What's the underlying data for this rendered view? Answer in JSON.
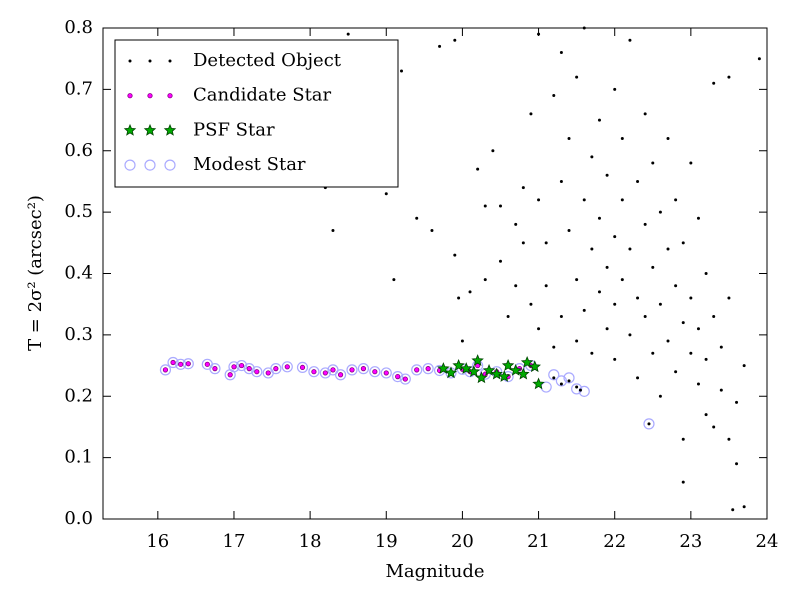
{
  "chart_data": {
    "type": "scatter",
    "xlabel": "Magnitude",
    "ylabel": "T = 2σ² (arcsec²)",
    "xlim": [
      15.28,
      24
    ],
    "ylim": [
      0,
      0.8
    ],
    "xticks": [
      16,
      17,
      18,
      19,
      20,
      21,
      22,
      23,
      24
    ],
    "yticks": [
      {
        "value": 0,
        "label": "0.0"
      },
      0.1,
      0.2,
      0.3,
      0.4,
      0.5,
      0.6,
      0.7,
      0.8
    ],
    "legend": "upper left",
    "series": [
      {
        "name": "Detected Object",
        "color": "#000000",
        "marker": "dot",
        "x": [
          21.2,
          21.3,
          21.4,
          21.5,
          21.55,
          22.45,
          18.2,
          18.3,
          18.5,
          18.9,
          19.0,
          19.1,
          19.2,
          19.4,
          19.6,
          19.7,
          19.9,
          19.9,
          19.95,
          20.0,
          20.1,
          20.2,
          20.3,
          20.3,
          20.4,
          20.5,
          20.5,
          20.6,
          20.7,
          20.7,
          20.8,
          20.8,
          20.9,
          20.9,
          21.0,
          21.0,
          21.0,
          21.1,
          21.1,
          21.2,
          21.2,
          21.3,
          21.3,
          21.3,
          21.4,
          21.4,
          21.5,
          21.5,
          21.5,
          21.6,
          21.6,
          21.6,
          21.7,
          21.7,
          21.7,
          21.8,
          21.8,
          21.8,
          21.9,
          21.9,
          21.9,
          22.0,
          22.0,
          22.0,
          22.0,
          22.1,
          22.1,
          22.1,
          22.2,
          22.2,
          22.2,
          22.3,
          22.3,
          22.3,
          22.4,
          22.4,
          22.4,
          22.5,
          22.5,
          22.5,
          22.6,
          22.6,
          22.6,
          22.7,
          22.7,
          22.7,
          22.8,
          22.8,
          22.8,
          22.9,
          22.9,
          22.9,
          23.0,
          23.0,
          23.0,
          23.1,
          23.1,
          23.1,
          23.2,
          23.2,
          23.2,
          23.3,
          23.3,
          23.3,
          23.4,
          23.4,
          23.5,
          23.5,
          23.6,
          23.6,
          23.7,
          23.7,
          23.5,
          23.9,
          22.9,
          23.55
        ],
        "values": [
          0.23,
          0.22,
          0.225,
          0.215,
          0.21,
          0.155,
          0.54,
          0.47,
          0.79,
          0.68,
          0.53,
          0.39,
          0.73,
          0.49,
          0.47,
          0.77,
          0.43,
          0.78,
          0.36,
          0.29,
          0.37,
          0.57,
          0.39,
          0.51,
          0.6,
          0.51,
          0.42,
          0.33,
          0.48,
          0.38,
          0.54,
          0.45,
          0.66,
          0.35,
          0.52,
          0.79,
          0.31,
          0.45,
          0.38,
          0.69,
          0.28,
          0.55,
          0.76,
          0.33,
          0.47,
          0.62,
          0.39,
          0.29,
          0.72,
          0.52,
          0.34,
          0.8,
          0.44,
          0.59,
          0.27,
          0.37,
          0.65,
          0.49,
          0.31,
          0.41,
          0.56,
          0.7,
          0.35,
          0.46,
          0.26,
          0.52,
          0.39,
          0.62,
          0.3,
          0.44,
          0.78,
          0.36,
          0.55,
          0.23,
          0.48,
          0.33,
          0.66,
          0.41,
          0.27,
          0.58,
          0.35,
          0.5,
          0.2,
          0.44,
          0.29,
          0.62,
          0.38,
          0.24,
          0.52,
          0.32,
          0.13,
          0.45,
          0.27,
          0.36,
          0.58,
          0.22,
          0.31,
          0.49,
          0.17,
          0.26,
          0.4,
          0.33,
          0.15,
          0.71,
          0.21,
          0.28,
          0.13,
          0.36,
          0.09,
          0.19,
          0.25,
          0.02,
          0.72,
          0.75,
          0.06,
          0.015
        ]
      },
      {
        "name": "Candidate Star",
        "color": "#ff00ff",
        "marker": "circle",
        "x": [
          16.1,
          16.2,
          16.3,
          16.4,
          16.65,
          16.75,
          16.95,
          17.0,
          17.1,
          17.2,
          17.3,
          17.45,
          17.55,
          17.7,
          17.9,
          18.05,
          18.2,
          18.3,
          18.4,
          18.55,
          18.7,
          18.85,
          19.0,
          19.15,
          19.25,
          19.4,
          19.55,
          19.7,
          19.85,
          20.0,
          20.1,
          20.2,
          20.3,
          20.45,
          20.6,
          20.75,
          20.9
        ],
        "values": [
          0.243,
          0.255,
          0.252,
          0.253,
          0.252,
          0.245,
          0.235,
          0.248,
          0.25,
          0.245,
          0.24,
          0.238,
          0.245,
          0.248,
          0.247,
          0.24,
          0.238,
          0.243,
          0.235,
          0.243,
          0.245,
          0.24,
          0.238,
          0.232,
          0.228,
          0.243,
          0.245,
          0.242,
          0.238,
          0.244,
          0.24,
          0.25,
          0.236,
          0.24,
          0.232,
          0.245,
          0.25
        ]
      },
      {
        "name": "PSF Star",
        "color": "#00aa00",
        "marker": "star",
        "x": [
          19.75,
          19.85,
          19.95,
          20.05,
          20.15,
          20.2,
          20.25,
          20.35,
          20.45,
          20.55,
          20.6,
          20.7,
          20.8,
          20.85,
          20.95,
          21.0
        ],
        "values": [
          0.245,
          0.238,
          0.25,
          0.245,
          0.24,
          0.258,
          0.23,
          0.242,
          0.236,
          0.232,
          0.25,
          0.242,
          0.236,
          0.255,
          0.248,
          0.22
        ]
      },
      {
        "name": "Modest Star",
        "color": "#aaaaff",
        "marker": "ring",
        "x": [
          16.1,
          16.2,
          16.3,
          16.4,
          16.65,
          16.75,
          16.95,
          17.0,
          17.1,
          17.2,
          17.3,
          17.45,
          17.55,
          17.7,
          17.9,
          18.05,
          18.2,
          18.3,
          18.4,
          18.55,
          18.7,
          18.85,
          19.0,
          19.15,
          19.25,
          19.4,
          19.55,
          19.7,
          19.85,
          20.0,
          20.1,
          20.2,
          20.3,
          20.45,
          20.6,
          20.75,
          20.9,
          21.1,
          21.2,
          21.3,
          21.4,
          21.5,
          21.6,
          22.45
        ],
        "values": [
          0.243,
          0.255,
          0.252,
          0.253,
          0.252,
          0.245,
          0.235,
          0.248,
          0.25,
          0.245,
          0.24,
          0.238,
          0.245,
          0.248,
          0.247,
          0.24,
          0.238,
          0.243,
          0.235,
          0.243,
          0.245,
          0.24,
          0.238,
          0.232,
          0.228,
          0.243,
          0.245,
          0.242,
          0.238,
          0.244,
          0.24,
          0.25,
          0.236,
          0.24,
          0.232,
          0.245,
          0.25,
          0.215,
          0.235,
          0.225,
          0.23,
          0.212,
          0.208,
          0.155
        ]
      }
    ]
  }
}
